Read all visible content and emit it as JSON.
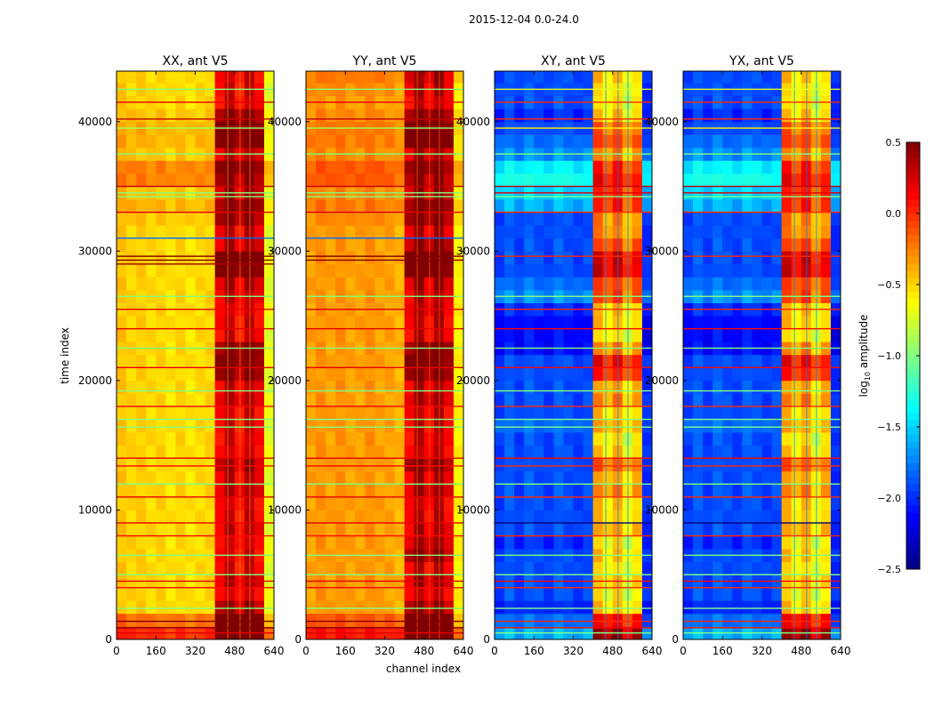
{
  "chart_data": {
    "type": "heatmap",
    "title": "2015-12-04 0.0-24.0",
    "xlabel": "channel index",
    "ylabel": "time index",
    "xlim": [
      0,
      640
    ],
    "ylim": [
      0,
      43900
    ],
    "xticks": [
      "0",
      "160",
      "320",
      "480",
      "640"
    ],
    "xtick_values": [
      0,
      160,
      320,
      480,
      640
    ],
    "yticks": [
      "0",
      "10000",
      "20000",
      "30000",
      "40000"
    ],
    "ytick_values": [
      0,
      10000,
      20000,
      30000,
      40000
    ],
    "colormap": "jet",
    "colorbar": {
      "label_main": "log",
      "label_sub": "10",
      "label_rest": " amplitude",
      "range": [
        -2.5,
        0.5
      ],
      "ticks": [
        "0.5",
        "0.0",
        "−0.5",
        "−1.0",
        "−1.5",
        "−2.0",
        "−2.5"
      ],
      "tick_values": [
        0.5,
        0.0,
        -0.5,
        -1.0,
        -1.5,
        -2.0,
        -2.5
      ]
    },
    "channel_bin_width": 40,
    "time_bin_height": 1000,
    "panels": [
      {
        "title": "XX, ant V5",
        "channel_profile": [
          -0.45,
          -0.5,
          -0.48,
          -0.52,
          -0.5,
          -0.55,
          -0.5,
          -0.55,
          -0.52,
          -0.5,
          0.1,
          0.3,
          0.05,
          0.3,
          0.1,
          -0.7
        ],
        "time_offsets_bulk": [
          0.5,
          0.3,
          0,
          0,
          0,
          0,
          0,
          0,
          0,
          0,
          0,
          0,
          0,
          0,
          0,
          0,
          0,
          0,
          0,
          0,
          0,
          0,
          0,
          0,
          0,
          0,
          0,
          0,
          0,
          0,
          0,
          0,
          0.05,
          0.1,
          0.05,
          0.25,
          0.25,
          0.05,
          0.1,
          0.1,
          0.05,
          0,
          0,
          0
        ],
        "time_offsets_emission": [
          0.4,
          0.4,
          0.2,
          0,
          0.1,
          0,
          0,
          0,
          0.05,
          0,
          0,
          0.1,
          0.05,
          0.15,
          0,
          0,
          0,
          0,
          0.1,
          0.05,
          0.3,
          0.35,
          0.3,
          0,
          0,
          0,
          0.05,
          0.1,
          0.4,
          0.4,
          0.1,
          0.05,
          0.2,
          0.2,
          0.1,
          0,
          0.1,
          0.05,
          0.3,
          0.3,
          0.2,
          0,
          0,
          0
        ],
        "lines": [
          [
            42500,
            -1.0
          ],
          [
            41500,
            0.2
          ],
          [
            40200,
            0.3
          ],
          [
            39500,
            -0.9
          ],
          [
            37500,
            -1.0
          ],
          [
            35000,
            0.3
          ],
          [
            34500,
            -1.0
          ],
          [
            34200,
            -1.0
          ],
          [
            33000,
            0.2
          ],
          [
            31000,
            -1.8
          ],
          [
            29600,
            0.5
          ],
          [
            29300,
            0.5
          ],
          [
            29000,
            0.4
          ],
          [
            26500,
            -1.0
          ],
          [
            25500,
            0.2
          ],
          [
            24000,
            0.2
          ],
          [
            22500,
            -1.0
          ],
          [
            21000,
            0.2
          ],
          [
            19200,
            -1.0
          ],
          [
            18000,
            0.1
          ],
          [
            17000,
            -1.0
          ],
          [
            16400,
            -1.0
          ],
          [
            14000,
            0.2
          ],
          [
            13400,
            0.1
          ],
          [
            12000,
            -1.0
          ],
          [
            11000,
            0.2
          ],
          [
            9000,
            0.2
          ],
          [
            8000,
            0.1
          ],
          [
            6500,
            -1.0
          ],
          [
            5000,
            -1.0
          ],
          [
            4500,
            0.2
          ],
          [
            4000,
            0.1
          ],
          [
            2400,
            -1.0
          ],
          [
            1400,
            0.5
          ],
          [
            900,
            0.5
          ],
          [
            500,
            0.2
          ]
        ]
      },
      {
        "title": "YY, ant V5",
        "channel_profile": [
          -0.35,
          -0.3,
          -0.35,
          -0.3,
          -0.35,
          -0.35,
          -0.3,
          -0.35,
          -0.35,
          -0.4,
          0.1,
          0.35,
          0.1,
          0.35,
          0.1,
          -0.6
        ],
        "time_offsets_bulk": [
          0.4,
          0.2,
          0,
          0,
          0,
          0,
          0,
          0,
          0,
          0,
          0,
          0,
          0,
          0,
          0,
          0,
          0,
          0,
          0,
          0,
          0,
          0,
          0,
          0,
          0,
          0,
          0,
          0,
          0,
          0,
          0,
          0,
          0.05,
          0.1,
          0.05,
          0.2,
          0.2,
          0.05,
          0.1,
          0.1,
          0.05,
          0,
          0.05,
          0.1
        ],
        "time_offsets_emission": [
          0.4,
          0.4,
          0.2,
          0,
          0.1,
          0,
          0.2,
          0.1,
          0.05,
          0,
          0,
          0.1,
          0.05,
          0.25,
          0,
          0,
          0,
          0,
          0.1,
          0.05,
          0.3,
          0.35,
          0.3,
          0,
          0,
          0.05,
          0.05,
          0.1,
          0.4,
          0.4,
          0.2,
          0.05,
          0.2,
          0.2,
          0.1,
          0,
          0.1,
          0.05,
          0.35,
          0.3,
          0.2,
          0,
          0,
          0
        ],
        "lines": [
          [
            42500,
            -1.0
          ],
          [
            41500,
            0.2
          ],
          [
            40200,
            0.3
          ],
          [
            39500,
            -0.9
          ],
          [
            37500,
            -1.0
          ],
          [
            35000,
            0.3
          ],
          [
            34500,
            -1.0
          ],
          [
            34200,
            -1.0
          ],
          [
            33000,
            0.2
          ],
          [
            31000,
            -1.8
          ],
          [
            29600,
            0.5
          ],
          [
            29300,
            0.5
          ],
          [
            26500,
            -1.0
          ],
          [
            25500,
            0.2
          ],
          [
            24000,
            0.2
          ],
          [
            22500,
            -1.0
          ],
          [
            21000,
            0.2
          ],
          [
            19200,
            -1.0
          ],
          [
            18000,
            0.1
          ],
          [
            17000,
            -1.0
          ],
          [
            16400,
            -1.0
          ],
          [
            14000,
            0.2
          ],
          [
            13400,
            0.1
          ],
          [
            12000,
            -1.0
          ],
          [
            11000,
            0.2
          ],
          [
            9000,
            0.2
          ],
          [
            8000,
            0.1
          ],
          [
            6500,
            -1.0
          ],
          [
            5000,
            -1.0
          ],
          [
            4500,
            0.2
          ],
          [
            4000,
            0.1
          ],
          [
            2400,
            -1.0
          ],
          [
            1400,
            0.5
          ],
          [
            900,
            0.5
          ],
          [
            500,
            0.2
          ]
        ]
      },
      {
        "title": "XY, ant V5",
        "channel_profile": [
          -1.95,
          -1.85,
          -1.95,
          -1.85,
          -1.9,
          -1.95,
          -1.85,
          -1.9,
          -1.95,
          -1.9,
          -0.4,
          -0.6,
          -0.4,
          -0.7,
          -0.5,
          -2.0
        ],
        "time_offsets_bulk": [
          0.3,
          0.1,
          -0.1,
          0,
          0,
          0,
          0,
          -0.1,
          0,
          0,
          0,
          0,
          0,
          0,
          0,
          0,
          0.1,
          0,
          0,
          0,
          0,
          0,
          -0.2,
          -0.2,
          -0.2,
          -0.1,
          0.2,
          0.1,
          0,
          0,
          0,
          0,
          0,
          0.3,
          0.4,
          0.6,
          0.5,
          0.2,
          0.1,
          0,
          -0.1,
          0,
          0,
          0
        ],
        "time_offsets_emission": [
          0.6,
          0.5,
          0.1,
          -0.1,
          0,
          -0.1,
          0,
          0,
          0.1,
          0,
          0,
          0.2,
          0.1,
          0.3,
          0,
          -0.1,
          0,
          0,
          0.2,
          0.1,
          0.5,
          0.6,
          0.4,
          0.1,
          0.2,
          0.1,
          0.2,
          0.3,
          0.7,
          0.7,
          0.4,
          0.2,
          0.2,
          0.2,
          0.1,
          0,
          0,
          0,
          0.3,
          0.3,
          0.1,
          -0.1,
          -0.1,
          0
        ],
        "lines": [
          [
            42500,
            -0.7
          ],
          [
            41500,
            0.0
          ],
          [
            40200,
            0.0
          ],
          [
            39500,
            -0.6
          ],
          [
            37500,
            -1.0
          ],
          [
            35000,
            0.3
          ],
          [
            34500,
            0.2
          ],
          [
            34200,
            -1.0
          ],
          [
            33000,
            0.0
          ],
          [
            29600,
            0.0
          ],
          [
            26500,
            -1.0
          ],
          [
            25500,
            0.0
          ],
          [
            24000,
            0.1
          ],
          [
            22500,
            -1.0
          ],
          [
            21000,
            0.1
          ],
          [
            19200,
            -1.0
          ],
          [
            18000,
            0.0
          ],
          [
            17000,
            -1.0
          ],
          [
            16400,
            -1.0
          ],
          [
            14000,
            0.1
          ],
          [
            13400,
            0.0
          ],
          [
            12000,
            -1.0
          ],
          [
            11000,
            0.0
          ],
          [
            9000,
            -2.5
          ],
          [
            8000,
            0.0
          ],
          [
            6500,
            -1.0
          ],
          [
            5000,
            -1.0
          ],
          [
            4500,
            0.1
          ],
          [
            4000,
            0.0
          ],
          [
            2400,
            -1.0
          ],
          [
            1400,
            0.0
          ],
          [
            900,
            0.1
          ],
          [
            500,
            -1.0
          ]
        ]
      },
      {
        "title": "YX, ant V5",
        "channel_profile": [
          -1.95,
          -1.85,
          -1.95,
          -1.85,
          -1.9,
          -1.95,
          -1.85,
          -1.9,
          -1.95,
          -1.9,
          -0.4,
          -0.6,
          -0.4,
          -0.7,
          -0.5,
          -2.0
        ],
        "time_offsets_bulk": [
          0.3,
          0.1,
          -0.1,
          0,
          0,
          0,
          0,
          -0.1,
          0,
          0,
          0,
          0,
          0,
          0,
          0,
          0,
          0.1,
          0,
          0,
          0,
          0,
          0,
          -0.2,
          -0.2,
          -0.2,
          -0.1,
          0.2,
          0.1,
          0,
          0,
          0,
          0,
          0,
          0.3,
          0.4,
          0.6,
          0.5,
          0.2,
          0.1,
          0,
          -0.1,
          0,
          0,
          0
        ],
        "time_offsets_emission": [
          0.6,
          0.5,
          0.1,
          -0.1,
          0,
          -0.1,
          0,
          0,
          0.1,
          0,
          0,
          0.2,
          0.1,
          0.3,
          0,
          -0.1,
          0,
          0,
          0.2,
          0.1,
          0.5,
          0.6,
          0.4,
          0.1,
          0.2,
          0.1,
          0.2,
          0.3,
          0.7,
          0.7,
          0.4,
          0.2,
          0.2,
          0.2,
          0.1,
          0,
          0,
          0,
          0.3,
          0.3,
          0.1,
          -0.1,
          -0.1,
          0
        ],
        "lines": [
          [
            42500,
            -0.7
          ],
          [
            41500,
            0.0
          ],
          [
            40200,
            0.0
          ],
          [
            39500,
            -0.6
          ],
          [
            37500,
            -1.0
          ],
          [
            35000,
            0.3
          ],
          [
            34500,
            0.2
          ],
          [
            34200,
            -1.0
          ],
          [
            33000,
            0.0
          ],
          [
            29600,
            0.0
          ],
          [
            26500,
            -1.0
          ],
          [
            25500,
            0.0
          ],
          [
            24000,
            0.1
          ],
          [
            22500,
            -1.0
          ],
          [
            21000,
            0.1
          ],
          [
            19200,
            -1.0
          ],
          [
            18000,
            0.0
          ],
          [
            17000,
            -1.0
          ],
          [
            16400,
            -1.0
          ],
          [
            14000,
            0.1
          ],
          [
            13400,
            0.0
          ],
          [
            12000,
            -1.0
          ],
          [
            11000,
            0.0
          ],
          [
            9000,
            -2.5
          ],
          [
            8000,
            0.0
          ],
          [
            6500,
            -1.0
          ],
          [
            5000,
            -1.0
          ],
          [
            4500,
            0.1
          ],
          [
            4000,
            0.0
          ],
          [
            2400,
            -1.0
          ],
          [
            1400,
            0.0
          ],
          [
            900,
            0.1
          ],
          [
            500,
            -1.0
          ]
        ]
      }
    ]
  }
}
